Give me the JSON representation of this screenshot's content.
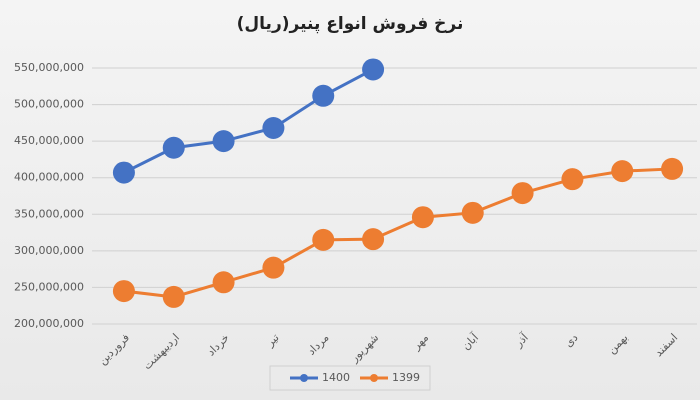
{
  "chart_data": {
    "type": "line",
    "title": "نرخ فروش انواع پنیر(ریال)",
    "categories": [
      "فروردین",
      "اردیبهشت",
      "خرداد",
      "تیر",
      "مرداد",
      "شهریور",
      "مهر",
      "آبان",
      "آذر",
      "دی",
      "بهمن",
      "اسفند"
    ],
    "series": [
      {
        "name": "1400",
        "color": "#4472c4",
        "values": [
          407000000,
          441000000,
          450000000,
          468000000,
          512000000,
          548000000,
          null,
          null,
          null,
          null,
          null,
          null
        ]
      },
      {
        "name": "1399",
        "color": "#ed7d31",
        "values": [
          245000000,
          237000000,
          257000000,
          277000000,
          315000000,
          316000000,
          346000000,
          352000000,
          379000000,
          398000000,
          409000000,
          412000000
        ]
      }
    ],
    "ylim": [
      200000000,
      550000000
    ],
    "yticks": [
      {
        "value": 200000000,
        "label": "200,000,000"
      },
      {
        "value": 250000000,
        "label": "250,000,000"
      },
      {
        "value": 300000000,
        "label": "300,000,000"
      },
      {
        "value": 350000000,
        "label": "350,000,000"
      },
      {
        "value": 400000000,
        "label": "400,000,000"
      },
      {
        "value": 450000000,
        "label": "450,000,000"
      },
      {
        "value": 500000000,
        "label": "500,000,000"
      },
      {
        "value": 550000000,
        "label": "550,000,000"
      }
    ],
    "grid": true,
    "legend": "bottom"
  }
}
